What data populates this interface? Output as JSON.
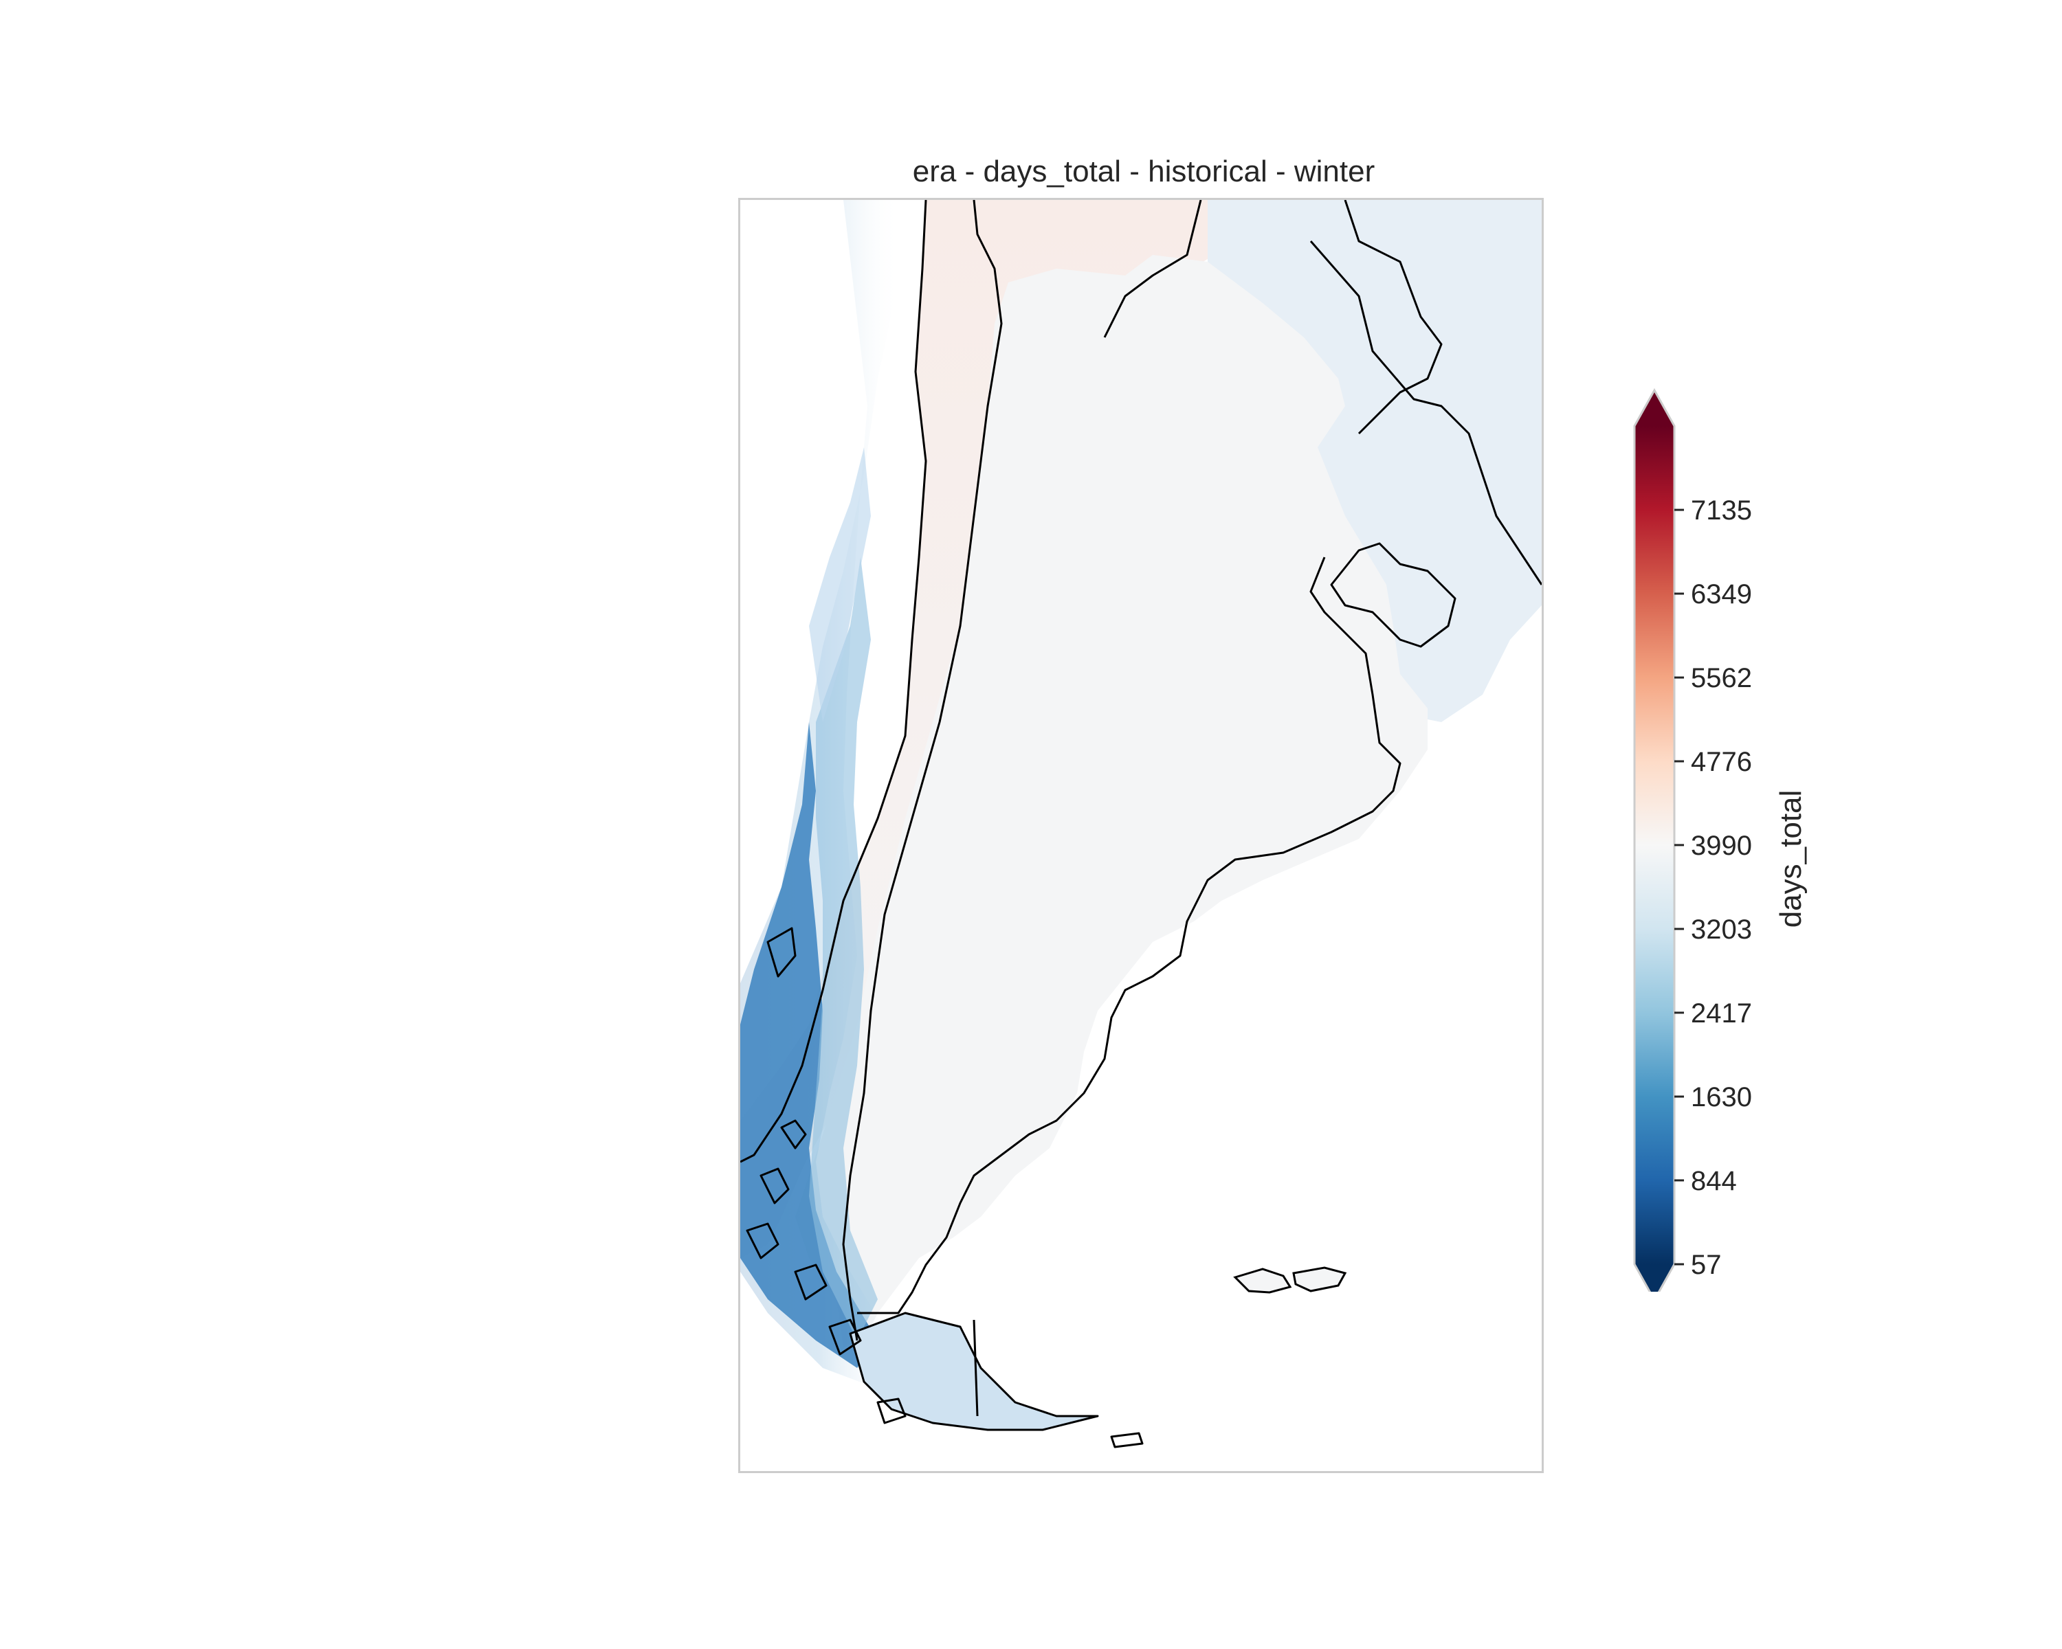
{
  "figure": {
    "title": "era - days_total - historical - winter"
  },
  "map": {
    "region": "Southern South America (Argentina, Chile, Uruguay)",
    "field": "days_total",
    "colormap": "RdBu_r",
    "features": [
      "coastlines",
      "country borders",
      "Falkland Islands",
      "Tierra del Fuego"
    ],
    "dominant_value_description": "near 3990 over most land; low values (blue) along southern Andes / Chilean coast"
  },
  "colorbar": {
    "label": "days_total",
    "ticks": [
      "57",
      "844",
      "1630",
      "2417",
      "3203",
      "3990",
      "4776",
      "5562",
      "6349",
      "7135"
    ],
    "tick_values": [
      57,
      844,
      1630,
      2417,
      3203,
      3990,
      4776,
      5562,
      6349,
      7135
    ],
    "range": [
      57,
      7922
    ],
    "extend": "both",
    "colors": [
      "#053061",
      "#2166ac",
      "#4393c3",
      "#92c5de",
      "#d1e5f0",
      "#f7f7f7",
      "#fddbc7",
      "#f4a582",
      "#d6604d",
      "#b2182b",
      "#67001f"
    ]
  }
}
